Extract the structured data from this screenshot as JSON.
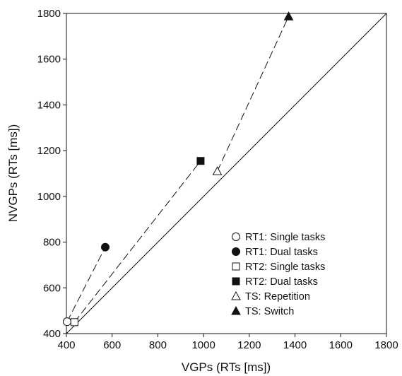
{
  "chart_data": {
    "type": "scatter",
    "title": "",
    "xlabel": "VGPs (RTs [ms])",
    "ylabel": "NVGPs (RTs [ms])",
    "xlim": [
      400,
      1800
    ],
    "ylim": [
      400,
      1800
    ],
    "xticks": [
      "400",
      "600",
      "800",
      "1000",
      "1200",
      "1400",
      "1600",
      "1800"
    ],
    "yticks": [
      "400",
      "600",
      "800",
      "1000",
      "1200",
      "1400",
      "1600",
      "1800"
    ],
    "grid": false,
    "reference_line": "identity (y = x)",
    "legend_position": "bottom-right",
    "series": [
      {
        "name": "RT1: Single tasks",
        "marker": "open-circle",
        "x": 403,
        "y": 452
      },
      {
        "name": "RT1: Dual tasks",
        "marker": "filled-circle",
        "x": 570,
        "y": 778
      },
      {
        "name": "RT2: Single tasks",
        "marker": "open-square",
        "x": 435,
        "y": 450
      },
      {
        "name": "RT2: Dual tasks",
        "marker": "filled-square",
        "x": 987,
        "y": 1155
      },
      {
        "name": "TS: Repetition",
        "marker": "open-triangle",
        "x": 1060,
        "y": 1110
      },
      {
        "name": "TS: Switch",
        "marker": "filled-triangle",
        "x": 1372,
        "y": 1787
      }
    ],
    "dashed_connectors": [
      [
        "RT1: Single tasks",
        "RT1: Dual tasks"
      ],
      [
        "RT2: Single tasks",
        "RT2: Dual tasks"
      ],
      [
        "TS: Repetition",
        "TS: Switch"
      ]
    ]
  }
}
